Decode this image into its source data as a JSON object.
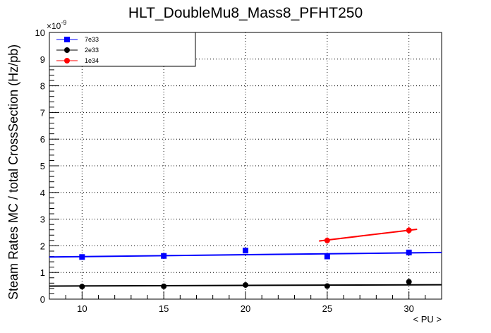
{
  "chart_data": {
    "type": "scatter",
    "title": "HLT_DoubleMu8_Mass8_PFHT250",
    "xlabel": "< PU >",
    "ylabel": "Steam Rates MC / total CrossSection (Hz/pb)",
    "y_exponent_label": "×10",
    "y_exponent_power": "-9",
    "xlim": [
      8,
      32
    ],
    "ylim": [
      0,
      10
    ],
    "x_ticks": [
      10,
      15,
      20,
      25,
      30
    ],
    "y_ticks": [
      0,
      1,
      2,
      3,
      4,
      5,
      6,
      7,
      8,
      9,
      10
    ],
    "grid": true,
    "legend_position": "top-left",
    "series": [
      {
        "name": "7e33",
        "color": "#0000ff",
        "marker": "square",
        "x": [
          10,
          15,
          20,
          25,
          30
        ],
        "y": [
          1.58,
          1.62,
          1.82,
          1.6,
          1.75
        ],
        "err": [
          0.06,
          0.06,
          0.07,
          0.06,
          0.07
        ],
        "fit": {
          "x": [
            8,
            32
          ],
          "y": [
            1.58,
            1.75
          ]
        }
      },
      {
        "name": "2e33",
        "color": "#000000",
        "marker": "circle",
        "x": [
          10,
          15,
          20,
          25,
          30
        ],
        "y": [
          0.47,
          0.48,
          0.53,
          0.49,
          0.65
        ],
        "err": [
          0.04,
          0.04,
          0.05,
          0.04,
          0.06
        ],
        "fit": {
          "x": [
            8,
            32
          ],
          "y": [
            0.49,
            0.54
          ]
        }
      },
      {
        "name": "1e34",
        "color": "#ff0000",
        "marker": "circle",
        "x": [
          25,
          30
        ],
        "y": [
          2.2,
          2.58
        ],
        "err": [
          0.12,
          0.14
        ],
        "fit": {
          "x": [
            24.5,
            30.5
          ],
          "y": [
            2.18,
            2.62
          ]
        }
      }
    ]
  }
}
